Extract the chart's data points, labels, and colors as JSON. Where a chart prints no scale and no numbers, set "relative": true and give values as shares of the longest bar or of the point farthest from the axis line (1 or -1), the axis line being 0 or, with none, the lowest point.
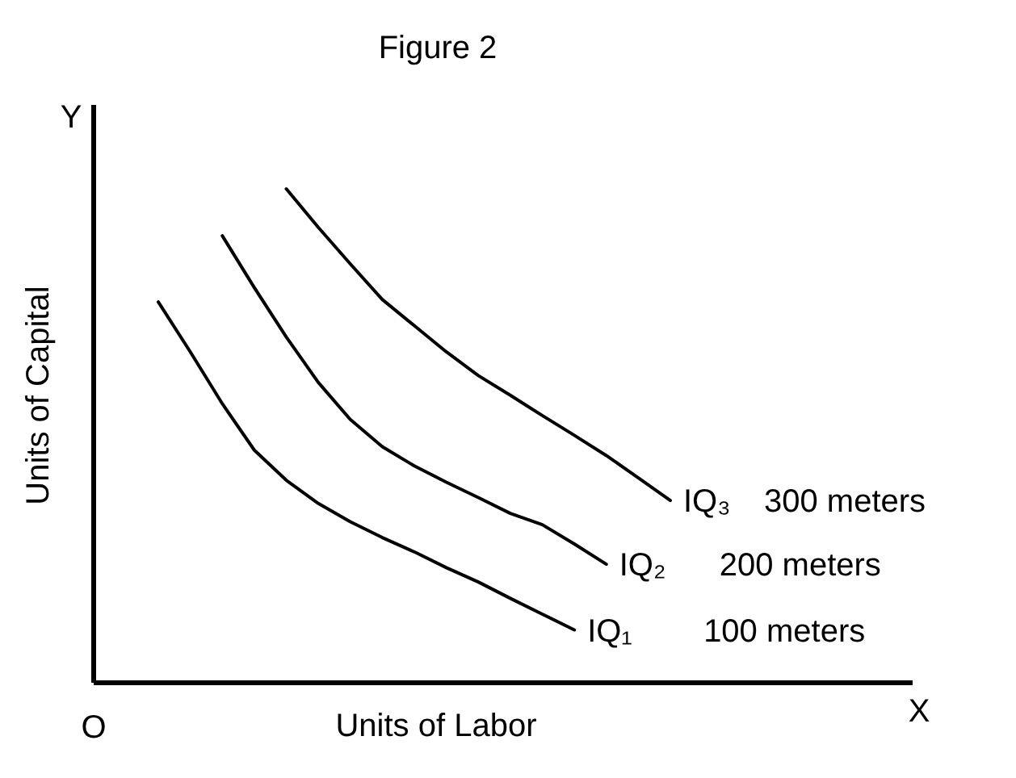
{
  "chart_data": {
    "type": "line",
    "title": "Figure 2",
    "xlabel": "Units of Labor",
    "ylabel": "Units of Capital",
    "relative": true,
    "line_style": "solid",
    "categories": [
      null,
      null,
      null,
      null,
      null,
      null,
      null,
      null,
      null,
      null,
      null,
      null,
      null,
      null,
      null,
      null,
      null
    ],
    "series": [
      {
        "name": "IQ₁",
        "color": "#000000",
        "values": [
          0.771,
          0.67,
          0.565,
          0.471,
          0.41,
          0.363,
          0.326,
          0.294,
          0.265,
          0.233,
          0.204,
          0.171,
          0.139,
          0.107,
          null,
          null,
          null
        ]
      },
      {
        "name": "IQ₂",
        "color": "#000000",
        "values": [
          null,
          null,
          0.905,
          0.8,
          0.7,
          0.608,
          0.533,
          0.478,
          0.439,
          0.406,
          0.375,
          0.343,
          0.32,
          0.281,
          0.24,
          null,
          null
        ]
      },
      {
        "name": "IQ₃",
        "color": "#000000",
        "values": [
          null,
          null,
          null,
          null,
          1,
          0.922,
          0.848,
          0.776,
          0.723,
          0.67,
          0.622,
          0.582,
          0.541,
          0.501,
          0.46,
          0.415,
          0.369
        ]
      }
    ],
    "annotations": [
      "O",
      "X",
      "Y",
      "100 meters",
      "200 meters",
      "300 meters"
    ]
  }
}
